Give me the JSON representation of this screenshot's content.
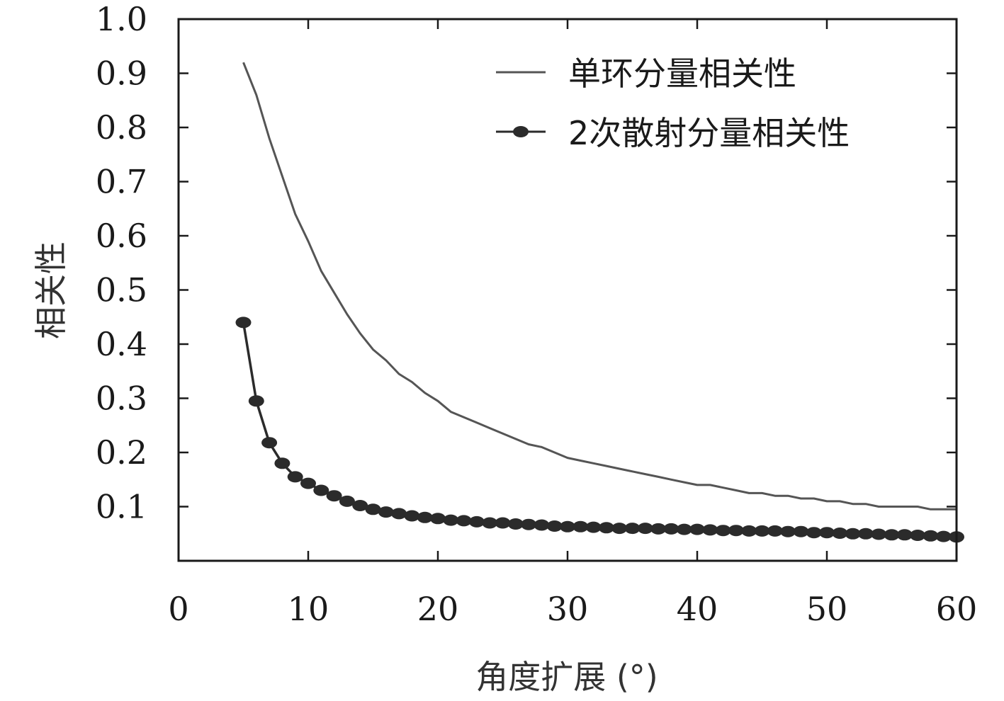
{
  "chart_data": {
    "type": "line",
    "xlabel": "角度扩展 (°)",
    "ylabel": "相关性",
    "xlim": [
      0,
      60
    ],
    "ylim": [
      0,
      1.0
    ],
    "xticks": [
      "0",
      "10",
      "20",
      "30",
      "40",
      "50",
      "60"
    ],
    "yticks": [
      "0.1",
      "0.2",
      "0.3",
      "0.4",
      "0.5",
      "0.6",
      "0.7",
      "0.8",
      "0.9",
      "1.0"
    ],
    "grid": false,
    "legend_position": "top-right",
    "series": [
      {
        "name": "单环分量相关性",
        "color": "#555555",
        "marker": "none",
        "x": [
          5,
          6,
          7,
          8,
          9,
          10,
          11,
          12,
          13,
          14,
          15,
          16,
          17,
          18,
          19,
          20,
          21,
          22,
          23,
          24,
          25,
          26,
          27,
          28,
          29,
          30,
          31,
          32,
          33,
          34,
          35,
          36,
          37,
          38,
          39,
          40,
          41,
          42,
          43,
          44,
          45,
          46,
          47,
          48,
          49,
          50,
          51,
          52,
          53,
          54,
          55,
          56,
          57,
          58,
          59,
          60
        ],
        "values": [
          0.92,
          0.86,
          0.78,
          0.71,
          0.64,
          0.59,
          0.535,
          0.495,
          0.455,
          0.42,
          0.39,
          0.37,
          0.345,
          0.33,
          0.31,
          0.295,
          0.275,
          0.265,
          0.255,
          0.245,
          0.235,
          0.225,
          0.215,
          0.21,
          0.2,
          0.19,
          0.185,
          0.18,
          0.175,
          0.17,
          0.165,
          0.16,
          0.155,
          0.15,
          0.145,
          0.14,
          0.14,
          0.135,
          0.13,
          0.125,
          0.125,
          0.12,
          0.12,
          0.115,
          0.115,
          0.11,
          0.11,
          0.105,
          0.105,
          0.1,
          0.1,
          0.1,
          0.1,
          0.095,
          0.095,
          0.095
        ]
      },
      {
        "name": "2次散射分量相关性",
        "color": "#2b2b2b",
        "marker": "circle",
        "x": [
          5,
          6,
          7,
          8,
          9,
          10,
          11,
          12,
          13,
          14,
          15,
          16,
          17,
          18,
          19,
          20,
          21,
          22,
          23,
          24,
          25,
          26,
          27,
          28,
          29,
          30,
          31,
          32,
          33,
          34,
          35,
          36,
          37,
          38,
          39,
          40,
          41,
          42,
          43,
          44,
          45,
          46,
          47,
          48,
          49,
          50,
          51,
          52,
          53,
          54,
          55,
          56,
          57,
          58,
          59,
          60
        ],
        "values": [
          0.44,
          0.295,
          0.218,
          0.18,
          0.155,
          0.143,
          0.13,
          0.12,
          0.11,
          0.102,
          0.095,
          0.09,
          0.087,
          0.083,
          0.08,
          0.078,
          0.075,
          0.074,
          0.072,
          0.07,
          0.07,
          0.068,
          0.067,
          0.066,
          0.064,
          0.063,
          0.063,
          0.062,
          0.061,
          0.06,
          0.06,
          0.06,
          0.059,
          0.059,
          0.058,
          0.058,
          0.057,
          0.056,
          0.056,
          0.055,
          0.055,
          0.055,
          0.054,
          0.054,
          0.052,
          0.052,
          0.051,
          0.05,
          0.05,
          0.049,
          0.048,
          0.048,
          0.047,
          0.046,
          0.045,
          0.044
        ]
      }
    ]
  }
}
